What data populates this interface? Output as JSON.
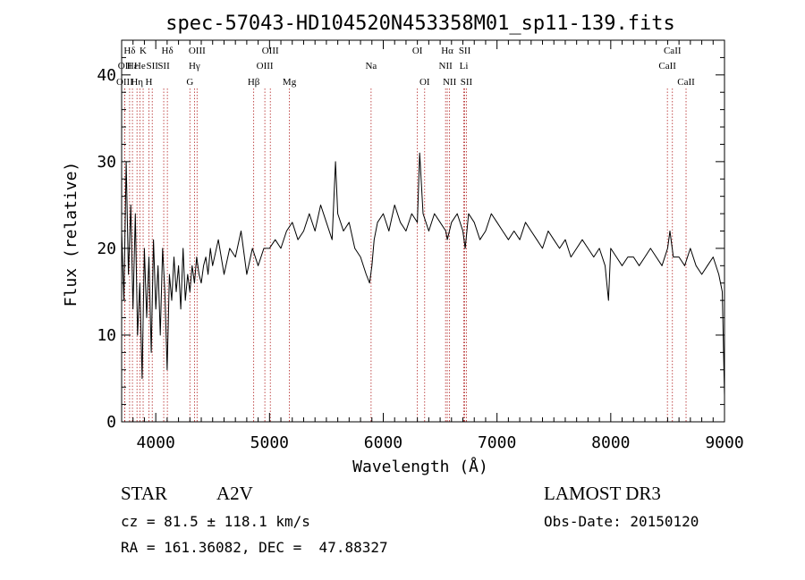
{
  "chart_data": {
    "type": "line",
    "title": "spec-57043-HD104520N453358M01_sp11-139.fits",
    "xlabel": "Wavelength (Å)",
    "ylabel": "Flux (relative)",
    "xlim": [
      3700,
      9000
    ],
    "ylim": [
      0,
      44
    ],
    "xticks": [
      4000,
      5000,
      6000,
      7000,
      8000,
      9000
    ],
    "yticks": [
      0,
      10,
      20,
      30,
      40
    ],
    "line_color": "#000000",
    "marker_color": "#b22222",
    "series": [
      {
        "x": [
          3700,
          3720,
          3740,
          3760,
          3780,
          3800,
          3820,
          3840,
          3860,
          3880,
          3900,
          3920,
          3940,
          3960,
          3980,
          4000,
          4020,
          4040,
          4060,
          4080,
          4100,
          4120,
          4140,
          4160,
          4180,
          4200,
          4220,
          4240,
          4260,
          4280,
          4300,
          4320,
          4340,
          4360,
          4380,
          4400,
          4420,
          4440,
          4460,
          4480,
          4500,
          4550,
          4600,
          4650,
          4700,
          4750,
          4800,
          4850,
          4900,
          4950,
          5000,
          5050,
          5100,
          5150,
          5200,
          5250,
          5300,
          5350,
          5400,
          5450,
          5500,
          5550,
          5580,
          5600,
          5650,
          5700,
          5750,
          5800,
          5850,
          5880,
          5900,
          5920,
          5950,
          6000,
          6050,
          6100,
          6150,
          6200,
          6250,
          6300,
          6320,
          6350,
          6400,
          6450,
          6500,
          6550,
          6563,
          6600,
          6650,
          6700,
          6720,
          6750,
          6800,
          6850,
          6900,
          6950,
          7000,
          7050,
          7100,
          7150,
          7200,
          7250,
          7300,
          7350,
          7400,
          7450,
          7500,
          7550,
          7600,
          7650,
          7700,
          7750,
          7800,
          7850,
          7900,
          7950,
          7980,
          8000,
          8050,
          8100,
          8150,
          8200,
          8250,
          8300,
          8350,
          8400,
          8450,
          8500,
          8520,
          8550,
          8600,
          8650,
          8700,
          8750,
          8800,
          8850,
          8900,
          8950,
          8980,
          9000
        ],
        "y": [
          22,
          14,
          30,
          17,
          25,
          13,
          24,
          10,
          16,
          5,
          20,
          12,
          19,
          8,
          21,
          13,
          18,
          10,
          20,
          15,
          6,
          17,
          14,
          19,
          15,
          18,
          13,
          20,
          14,
          17,
          15,
          18,
          16,
          19,
          17,
          16,
          18,
          19,
          17,
          20,
          18,
          21,
          17,
          20,
          19,
          22,
          17,
          20,
          18,
          20,
          20,
          21,
          20,
          22,
          23,
          21,
          22,
          24,
          22,
          25,
          23,
          21,
          30,
          24,
          22,
          23,
          20,
          19,
          17,
          16,
          18,
          21,
          23,
          24,
          22,
          25,
          23,
          22,
          24,
          23,
          31,
          24,
          22,
          24,
          23,
          22,
          21,
          23,
          24,
          22,
          20,
          24,
          23,
          21,
          22,
          24,
          23,
          22,
          21,
          22,
          21,
          23,
          22,
          21,
          20,
          22,
          21,
          20,
          21,
          19,
          20,
          21,
          20,
          19,
          20,
          18,
          14,
          20,
          19,
          18,
          19,
          19,
          18,
          19,
          20,
          19,
          18,
          20,
          22,
          19,
          19,
          18,
          20,
          18,
          17,
          18,
          19,
          17,
          15,
          3
        ]
      }
    ],
    "line_markers": [
      {
        "label": "Hδ",
        "x": 3770,
        "row": 0
      },
      {
        "label": "OII",
        "x": 3727,
        "row": 1
      },
      {
        "label": "OIII",
        "x": 3727,
        "row": 2
      },
      {
        "label": "Hε",
        "x": 3795,
        "row": 1
      },
      {
        "label": "Hη",
        "x": 3835,
        "row": 2
      },
      {
        "label": "K",
        "x": 3889,
        "row": 0
      },
      {
        "label": "He",
        "x": 3860,
        "row": 1
      },
      {
        "label": "H",
        "x": 3940,
        "row": 2
      },
      {
        "label": "SII",
        "x": 3969,
        "row": 1
      },
      {
        "label": "Hδ",
        "x": 4102,
        "row": 0
      },
      {
        "label": "SII",
        "x": 4070,
        "row": 1
      },
      {
        "label": "OIII",
        "x": 4363,
        "row": 0
      },
      {
        "label": "Hγ",
        "x": 4340,
        "row": 1
      },
      {
        "label": "G",
        "x": 4300,
        "row": 2
      },
      {
        "label": "OIII",
        "x": 5007,
        "row": 0
      },
      {
        "label": "OIII",
        "x": 4959,
        "row": 1
      },
      {
        "label": "Hβ",
        "x": 4861,
        "row": 2
      },
      {
        "label": "Mg",
        "x": 5175,
        "row": 2
      },
      {
        "label": "Na",
        "x": 5893,
        "row": 1
      },
      {
        "label": "OI",
        "x": 6300,
        "row": 0
      },
      {
        "label": "OI",
        "x": 6364,
        "row": 2
      },
      {
        "label": "Hα",
        "x": 6563,
        "row": 0
      },
      {
        "label": "SII",
        "x": 6716,
        "row": 0
      },
      {
        "label": "NII",
        "x": 6548,
        "row": 1
      },
      {
        "label": "Li",
        "x": 6708,
        "row": 1
      },
      {
        "label": "NII",
        "x": 6583,
        "row": 2
      },
      {
        "label": "SII",
        "x": 6731,
        "row": 2
      },
      {
        "label": "CaII",
        "x": 8542,
        "row": 0
      },
      {
        "label": "CaII",
        "x": 8498,
        "row": 1
      },
      {
        "label": "CaII",
        "x": 8662,
        "row": 2
      }
    ]
  },
  "info": {
    "class_label": "STAR",
    "subclass": "A2V",
    "survey": "LAMOST DR3",
    "cz": "cz = 81.5 ± 118.1 km/s",
    "obs_date": "Obs-Date: 20150120",
    "coords": "RA = 161.36082, DEC =  47.88327"
  }
}
